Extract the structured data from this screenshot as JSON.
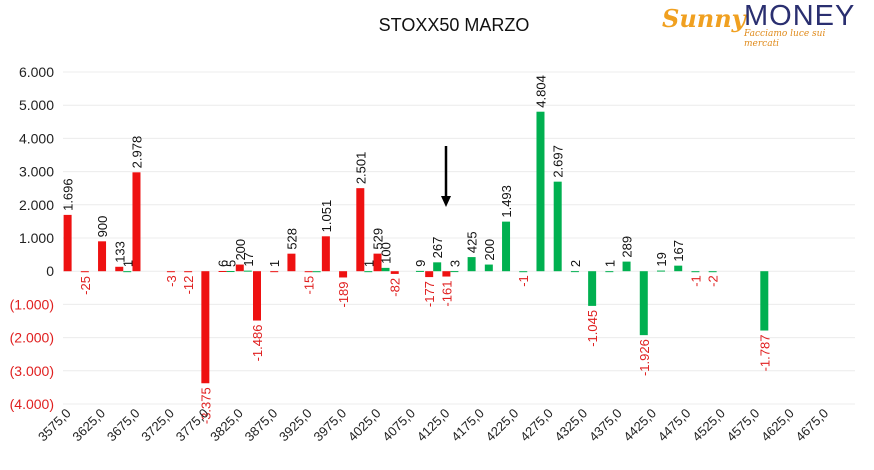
{
  "brand": {
    "name_part1": "Sunny",
    "name_part2": "MONEY",
    "tagline": "Facciamo luce sui mercati",
    "accent_color": "#f0a020",
    "name_color": "#2a2f70"
  },
  "colors": {
    "put": "#ee1111",
    "call": "#00b050",
    "negative_label": "#e02020"
  },
  "chart_data": {
    "type": "bar",
    "title": "STOXX50 MARZO",
    "xlabel": "",
    "ylabel": "",
    "ylim": [
      -4000,
      6000
    ],
    "y_ticks": [
      {
        "value": 6000,
        "label": "6.000"
      },
      {
        "value": 5000,
        "label": "5.000"
      },
      {
        "value": 4000,
        "label": "4.000"
      },
      {
        "value": 3000,
        "label": "3.000"
      },
      {
        "value": 2000,
        "label": "2.000"
      },
      {
        "value": 1000,
        "label": "1.000"
      },
      {
        "value": 0,
        "label": "0"
      },
      {
        "value": -1000,
        "label": "(1.000)"
      },
      {
        "value": -2000,
        "label": "(2.000)"
      },
      {
        "value": -3000,
        "label": "(3.000)"
      },
      {
        "value": -4000,
        "label": "(4.000)"
      }
    ],
    "x_tick_labels": [
      "3575,0",
      "3625,0",
      "3675,0",
      "3725,0",
      "3775,0",
      "3825,0",
      "3875,0",
      "3925,0",
      "3975,0",
      "4025,0",
      "4075,0",
      "4125,0",
      "4175,0",
      "4225,0",
      "4275,0",
      "4325,0",
      "4375,0",
      "4425,0",
      "4475,0",
      "4525,0",
      "4575,0",
      "4625,0",
      "4675,0"
    ],
    "strikes": [
      3575,
      3600,
      3625,
      3650,
      3675,
      3700,
      3725,
      3750,
      3775,
      3800,
      3825,
      3850,
      3875,
      3900,
      3925,
      3950,
      3975,
      4000,
      4025,
      4050,
      4075,
      4100,
      4125,
      4150,
      4175,
      4200,
      4225,
      4250,
      4275,
      4300,
      4325,
      4350,
      4375,
      4400,
      4425,
      4450,
      4475,
      4500,
      4525,
      4550,
      4575,
      4600,
      4625,
      4650,
      4675,
      4700
    ],
    "series": [
      {
        "color": "red",
        "values": [
          1696,
          -25,
          900,
          133,
          2978,
          null,
          -3,
          -12,
          -3375,
          6,
          200,
          -1486,
          1,
          528,
          -15,
          1051,
          -189,
          2501,
          529,
          -82,
          null,
          -177,
          -161,
          null,
          null,
          null,
          null,
          null,
          null,
          null,
          null,
          null,
          null,
          null,
          null,
          null,
          null,
          null,
          null,
          null,
          null,
          null,
          null,
          null,
          null,
          null
        ],
        "labels": [
          "1.696",
          "-25",
          "900",
          "133",
          "2.978",
          "",
          "-3",
          "-12",
          "-3.375",
          "6",
          "200",
          "-1.486",
          "1",
          "528",
          "-15",
          "1.051",
          "-189",
          "2.501",
          "529",
          "-82",
          "",
          "-177",
          "-161",
          "",
          "",
          "",
          "",
          "",
          "",
          "",
          "",
          "",
          "",
          "",
          "",
          "",
          "",
          "",
          "",
          "",
          "",
          "",
          "",
          "",
          "",
          ""
        ]
      },
      {
        "color": "green",
        "values": [
          null,
          null,
          null,
          1,
          null,
          null,
          null,
          null,
          null,
          5,
          17,
          null,
          null,
          null,
          -15,
          null,
          null,
          1,
          100,
          null,
          9,
          267,
          3,
          425,
          200,
          1493,
          -1,
          4804,
          2697,
          2,
          -1045,
          1,
          289,
          -1926,
          19,
          167,
          -1,
          -2,
          null,
          null,
          -1787,
          null,
          null,
          null,
          null,
          null
        ],
        "labels": [
          "",
          "",
          "",
          "1",
          "",
          "",
          "",
          "",
          "",
          "5",
          "17",
          "",
          "",
          "",
          "",
          "",
          "",
          "1",
          "100",
          "",
          "9",
          "267",
          "3",
          "425",
          "200",
          "1.493",
          "-1",
          "4.804",
          "2.697",
          "2",
          "-1.045",
          "1",
          "289",
          "-1.926",
          "19",
          "167",
          "-1",
          "-2",
          "",
          "",
          "-1.787",
          "",
          "",
          "",
          "",
          ""
        ]
      }
    ],
    "annotation": "down-arrow"
  }
}
